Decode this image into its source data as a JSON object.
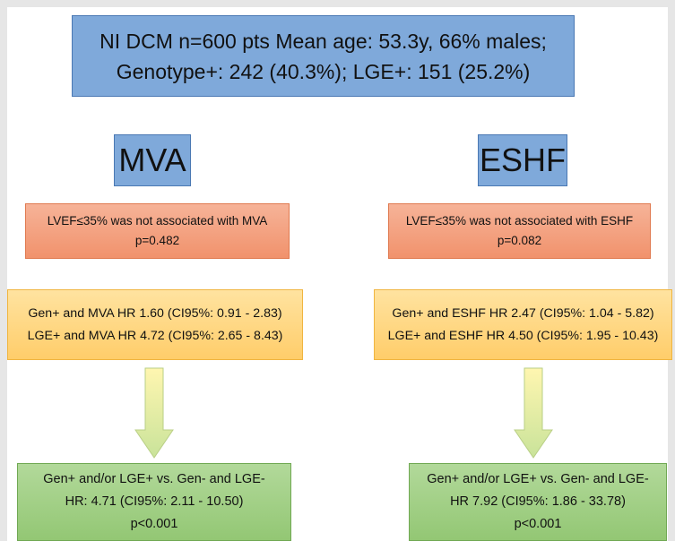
{
  "header": {
    "lines": [
      "NI DCM n=600 pts  Mean age: 53.3y, 66% males;",
      "Genotype+: 242 (40.3%); LGE+: 151 (25.2%)"
    ]
  },
  "columns": [
    {
      "title": "MVA",
      "lvef": [
        "LVEF≤35% was not associated with MVA",
        "p=0.482"
      ],
      "hr": [
        "Gen+ and MVA HR 1.60 (CI95%: 0.91 - 2.83)",
        "LGE+ and MVA HR 4.72 (CI95%: 2.65 - 8.43)"
      ],
      "outcome": [
        "Gen+ and/or LGE+  vs.  Gen- and LGE-",
        "HR: 4.71 (CI95%: 2.11 - 10.50)",
        "p<0.001"
      ]
    },
    {
      "title": "ESHF",
      "lvef": [
        "LVEF≤35% was not associated with ESHF",
        "p=0.082"
      ],
      "hr": [
        "Gen+ and ESHF HR 2.47 (CI95%: 1.04 - 5.82)",
        "LGE+ and ESHF HR 4.50 (CI95%: 1.95 - 10.43)"
      ],
      "outcome": [
        "Gen+ and/or LGE+  vs.  Gen- and LGE-",
        "HR 7.92 (CI95%: 1.86 - 33.78)",
        "p<0.001"
      ]
    }
  ]
}
